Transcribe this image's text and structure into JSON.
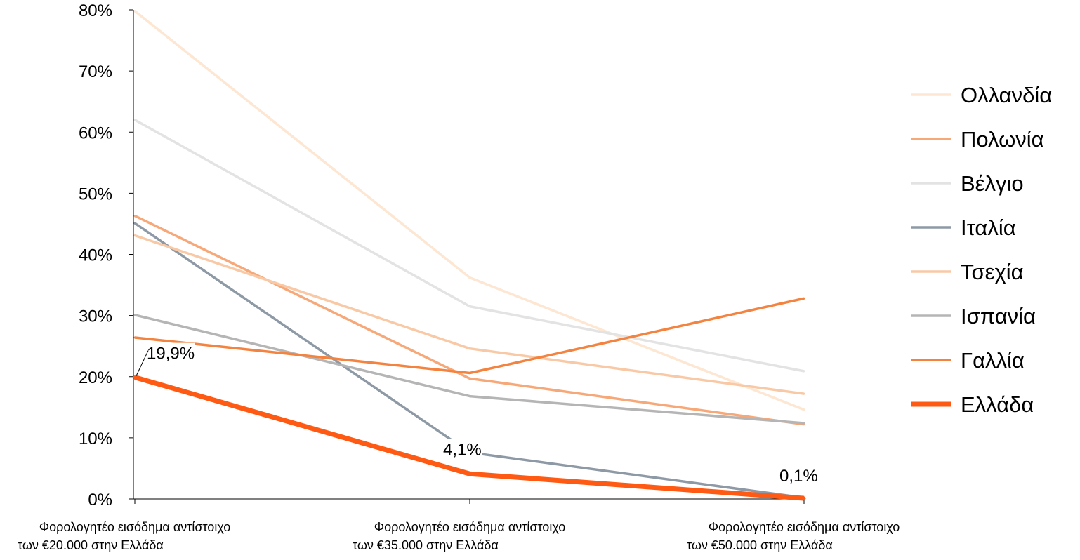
{
  "chart_data": {
    "type": "line",
    "title": "",
    "xlabel": "",
    "ylabel": "",
    "ylim": [
      0,
      80
    ],
    "y_ticks": [
      {
        "value": 0,
        "label": "0%"
      },
      {
        "value": 10,
        "label": "10%"
      },
      {
        "value": 20,
        "label": "20%"
      },
      {
        "value": 30,
        "label": "30%"
      },
      {
        "value": 40,
        "label": "40%"
      },
      {
        "value": 50,
        "label": "50%"
      },
      {
        "value": 60,
        "label": "60%"
      },
      {
        "value": 70,
        "label": "70%"
      },
      {
        "value": 80,
        "label": "80%"
      }
    ],
    "categories": [
      {
        "line1": "Φορολογητέο εισόδημα αντίστοιχο",
        "line2": "των €20.000 στην Ελλάδα"
      },
      {
        "line1": "Φορολογητέο εισόδημα αντίστοιχο",
        "line2": "των €35.000 στην Ελλάδα"
      },
      {
        "line1": "Φορολογητέο εισόδημα αντίστοιχο",
        "line2": "των €50.000 στην Ελλάδα"
      }
    ],
    "grid": false,
    "legend_position": "right",
    "series": [
      {
        "name": "Ολλανδία",
        "color": "#FDE6D2",
        "values": [
          79.8,
          36.2,
          14.6
        ],
        "emphasis": false
      },
      {
        "name": "Πολωνία",
        "color": "#F7A879",
        "values": [
          46.3,
          19.7,
          12.2
        ],
        "emphasis": false
      },
      {
        "name": "Βέλγιο",
        "color": "#E3E3E3",
        "values": [
          62.0,
          31.5,
          20.9
        ],
        "emphasis": false
      },
      {
        "name": "Ιταλία",
        "color": "#8E99A6",
        "values": [
          45.1,
          7.6,
          0.2
        ],
        "emphasis": false
      },
      {
        "name": "Τσεχία",
        "color": "#F9C9A6",
        "values": [
          43.1,
          24.6,
          17.2
        ],
        "emphasis": false
      },
      {
        "name": "Ισπανία",
        "color": "#B5B5B5",
        "values": [
          30.1,
          16.8,
          12.4
        ],
        "emphasis": false
      },
      {
        "name": "Γαλλία",
        "color": "#F4833F",
        "values": [
          26.4,
          20.6,
          32.8
        ],
        "emphasis": false
      },
      {
        "name": "Ελλάδα",
        "color": "#FF5A14",
        "values": [
          19.9,
          4.1,
          0.1
        ],
        "emphasis": true
      }
    ],
    "data_labels": [
      {
        "series": "Ελλάδα",
        "index": 0,
        "text": "19,9%"
      },
      {
        "series": "Ελλάδα",
        "index": 1,
        "text": "4,1%"
      },
      {
        "series": "Ελλάδα",
        "index": 2,
        "text": "0,1%"
      }
    ]
  }
}
